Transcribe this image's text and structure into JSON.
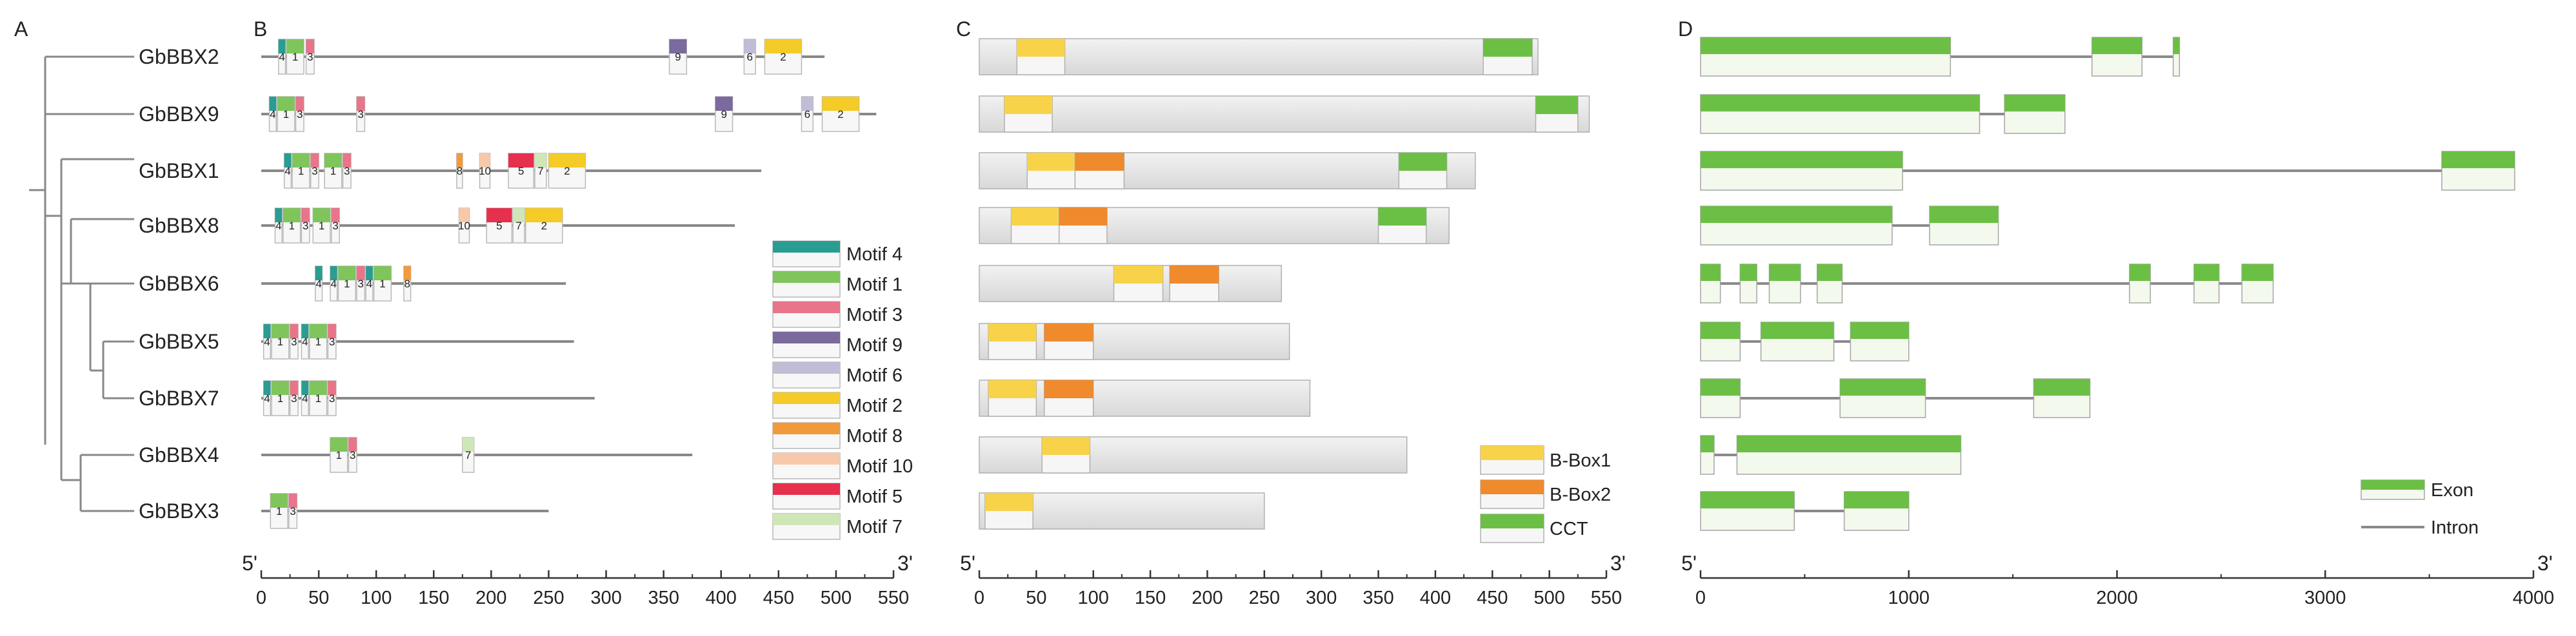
{
  "panels": {
    "A": "A",
    "B": "B",
    "C": "C",
    "D": "D"
  },
  "genes": [
    "GbBBX2",
    "GbBBX9",
    "GbBBX1",
    "GbBBX8",
    "GbBBX6",
    "GbBBX5",
    "GbBBX7",
    "GbBBX4",
    "GbBBX3"
  ],
  "colors": {
    "Motif 4": "#2a9d92",
    "Motif 1": "#7fc55b",
    "Motif 3": "#e8758a",
    "Motif 9": "#7a6a9e",
    "Motif 6": "#c0bdd6",
    "Motif 2": "#f4cb27",
    "Motif 8": "#f29a3a",
    "Motif 10": "#f7c9aa",
    "Motif 5": "#e6304d",
    "Motif 7": "#cfe7b6",
    "B-Box1": "#f8d34a",
    "B-Box2": "#ef8a2d",
    "CCT": "#6cbf45",
    "protein": "#dedede",
    "Exon": "#6cbf45",
    "Intron": "#8a8a8a",
    "line": "#888888"
  },
  "motif_legend": [
    "Motif 4",
    "Motif 1",
    "Motif 3",
    "Motif 9",
    "Motif 6",
    "Motif 2",
    "Motif 8",
    "Motif 10",
    "Motif 5",
    "Motif 7"
  ],
  "motif_labels": {
    "Motif 4": "4",
    "Motif 1": "1",
    "Motif 3": "3",
    "Motif 9": "9",
    "Motif 6": "6",
    "Motif 2": "2",
    "Motif 8": "8",
    "Motif 10": "10",
    "Motif 5": "5",
    "Motif 7": "7"
  },
  "domain_legend": [
    "B-Box1",
    "B-Box2",
    "CCT"
  ],
  "structure_legend": [
    "Exon",
    "Intron"
  ],
  "motif_axis": {
    "end5": "5'",
    "end3": "3'",
    "ticks": [
      "0",
      "50",
      "100",
      "150",
      "200",
      "250",
      "300",
      "350",
      "400",
      "450",
      "500",
      "550"
    ],
    "max": 550
  },
  "domain_axis": {
    "end5": "5'",
    "end3": "3'",
    "ticks": [
      "0",
      "50",
      "100",
      "150",
      "200",
      "250",
      "300",
      "350",
      "400",
      "450",
      "500",
      "550"
    ],
    "max": 550
  },
  "gene_axis": {
    "end5": "5'",
    "end3": "3'",
    "ticks": [
      "0",
      "1000",
      "2000",
      "3000",
      "4000"
    ],
    "max": 4000
  },
  "motifs": {
    "GbBBX2": {
      "len": 490,
      "motifs": [
        [
          "Motif 4",
          15,
          21
        ],
        [
          "Motif 1",
          22,
          37
        ],
        [
          "Motif 3",
          39,
          46
        ],
        [
          "Motif 9",
          355,
          370
        ],
        [
          "Motif 6",
          420,
          430
        ],
        [
          "Motif 2",
          438,
          470
        ]
      ]
    },
    "GbBBX9": {
      "len": 535,
      "motifs": [
        [
          "Motif 4",
          7,
          13
        ],
        [
          "Motif 1",
          14,
          29
        ],
        [
          "Motif 3",
          30,
          37
        ],
        [
          "Motif 3",
          83,
          90
        ],
        [
          "Motif 9",
          395,
          410
        ],
        [
          "Motif 6",
          470,
          480
        ],
        [
          "Motif 2",
          488,
          520
        ]
      ]
    },
    "GbBBX1": {
      "len": 435,
      "motifs": [
        [
          "Motif 4",
          20,
          26
        ],
        [
          "Motif 1",
          27,
          42
        ],
        [
          "Motif 3",
          43,
          50
        ],
        [
          "Motif 1",
          55,
          70
        ],
        [
          "Motif 3",
          71,
          78
        ],
        [
          "Motif 8",
          170,
          175
        ],
        [
          "Motif 10",
          190,
          199
        ],
        [
          "Motif 5",
          215,
          237
        ],
        [
          "Motif 7",
          238,
          248
        ],
        [
          "Motif 2",
          250,
          282
        ]
      ]
    },
    "GbBBX8": {
      "len": 412,
      "motifs": [
        [
          "Motif 4",
          12,
          18
        ],
        [
          "Motif 1",
          19,
          34
        ],
        [
          "Motif 3",
          35,
          42
        ],
        [
          "Motif 1",
          45,
          60
        ],
        [
          "Motif 3",
          61,
          68
        ],
        [
          "Motif 10",
          172,
          181
        ],
        [
          "Motif 5",
          196,
          218
        ],
        [
          "Motif 7",
          219,
          229
        ],
        [
          "Motif 2",
          230,
          262
        ]
      ]
    },
    "GbBBX6": {
      "len": 265,
      "motifs": [
        [
          "Motif 4",
          47,
          53
        ],
        [
          "Motif 4",
          60,
          66
        ],
        [
          "Motif 1",
          67,
          82
        ],
        [
          "Motif 3",
          83,
          90
        ],
        [
          "Motif 4",
          91,
          97
        ],
        [
          "Motif 1",
          98,
          113
        ],
        [
          "Motif 8",
          124,
          130
        ]
      ]
    },
    "GbBBX5": {
      "len": 272,
      "motifs": [
        [
          "Motif 4",
          2,
          8
        ],
        [
          "Motif 1",
          9,
          24
        ],
        [
          "Motif 3",
          25,
          32
        ],
        [
          "Motif 4",
          35,
          41
        ],
        [
          "Motif 1",
          42,
          57
        ],
        [
          "Motif 3",
          58,
          65
        ]
      ]
    },
    "GbBBX7": {
      "len": 290,
      "motifs": [
        [
          "Motif 4",
          2,
          8
        ],
        [
          "Motif 1",
          9,
          24
        ],
        [
          "Motif 3",
          25,
          32
        ],
        [
          "Motif 4",
          35,
          41
        ],
        [
          "Motif 1",
          42,
          57
        ],
        [
          "Motif 3",
          58,
          65
        ]
      ]
    },
    "GbBBX4": {
      "len": 375,
      "motifs": [
        [
          "Motif 1",
          60,
          75
        ],
        [
          "Motif 3",
          76,
          83
        ],
        [
          "Motif 7",
          175,
          185
        ]
      ]
    },
    "GbBBX3": {
      "len": 250,
      "motifs": [
        [
          "Motif 1",
          8,
          23
        ],
        [
          "Motif 3",
          24,
          31
        ]
      ]
    }
  },
  "domains": {
    "GbBBX2": {
      "len": 490,
      "domains": [
        [
          "B-Box1",
          33,
          75
        ],
        [
          "CCT",
          442,
          485
        ]
      ]
    },
    "GbBBX9": {
      "len": 535,
      "domains": [
        [
          "B-Box1",
          22,
          64
        ],
        [
          "CCT",
          488,
          525
        ]
      ]
    },
    "GbBBX1": {
      "len": 435,
      "domains": [
        [
          "B-Box1",
          42,
          84
        ],
        [
          "B-Box2",
          84,
          127
        ],
        [
          "CCT",
          368,
          410
        ]
      ]
    },
    "GbBBX8": {
      "len": 412,
      "domains": [
        [
          "B-Box1",
          28,
          70
        ],
        [
          "B-Box2",
          70,
          112
        ],
        [
          "CCT",
          350,
          392
        ]
      ]
    },
    "GbBBX6": {
      "len": 265,
      "domains": [
        [
          "B-Box1",
          118,
          161
        ],
        [
          "B-Box2",
          167,
          210
        ]
      ]
    },
    "GbBBX5": {
      "len": 272,
      "domains": [
        [
          "B-Box1",
          8,
          50
        ],
        [
          "B-Box2",
          57,
          100
        ]
      ]
    },
    "GbBBX7": {
      "len": 290,
      "domains": [
        [
          "B-Box1",
          8,
          50
        ],
        [
          "B-Box2",
          57,
          100
        ]
      ]
    },
    "GbBBX4": {
      "len": 375,
      "domains": [
        [
          "B-Box1",
          55,
          97
        ]
      ]
    },
    "GbBBX3": {
      "len": 250,
      "domains": [
        [
          "B-Box1",
          5,
          47
        ]
      ]
    }
  },
  "structures": {
    "GbBBX2": {
      "len": 2300,
      "exons": [
        [
          0,
          1200
        ],
        [
          1880,
          2120
        ],
        [
          2270,
          2300
        ]
      ]
    },
    "GbBBX9": {
      "len": 1750,
      "exons": [
        [
          0,
          1340
        ],
        [
          1460,
          1750
        ]
      ]
    },
    "GbBBX1": {
      "len": 3910,
      "exons": [
        [
          0,
          970
        ],
        [
          3560,
          3910
        ]
      ]
    },
    "GbBBX8": {
      "len": 1430,
      "exons": [
        [
          0,
          920
        ],
        [
          1100,
          1430
        ]
      ]
    },
    "GbBBX6": {
      "len": 2750,
      "exons": [
        [
          0,
          95
        ],
        [
          190,
          270
        ],
        [
          330,
          480
        ],
        [
          560,
          680
        ],
        [
          2060,
          2160
        ],
        [
          2370,
          2490
        ],
        [
          2600,
          2750
        ]
      ]
    },
    "GbBBX5": {
      "len": 1000,
      "exons": [
        [
          0,
          190
        ],
        [
          290,
          640
        ],
        [
          720,
          1000
        ]
      ]
    },
    "GbBBX7": {
      "len": 1870,
      "exons": [
        [
          0,
          190
        ],
        [
          670,
          1080
        ],
        [
          1600,
          1870
        ]
      ]
    },
    "GbBBX4": {
      "len": 1250,
      "exons": [
        [
          0,
          65
        ],
        [
          175,
          1250
        ]
      ]
    },
    "GbBBX3": {
      "len": 1000,
      "exons": [
        [
          0,
          450
        ],
        [
          690,
          1000
        ]
      ]
    }
  }
}
